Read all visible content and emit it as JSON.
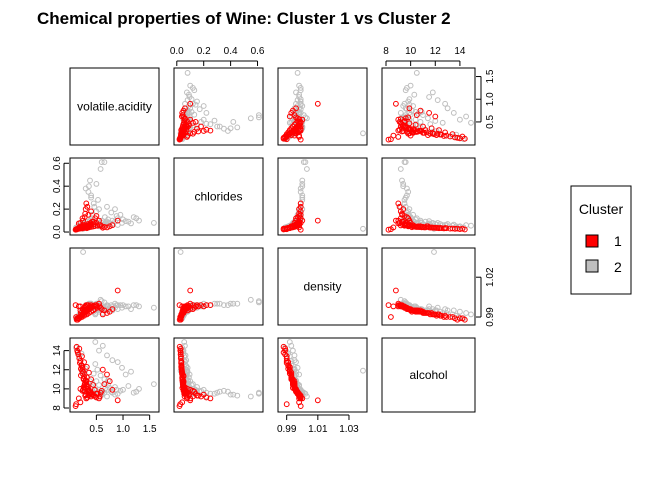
{
  "chart_data": {
    "type": "scatter",
    "title": "Chemical properties of Wine: Cluster 1 vs Cluster 2",
    "variables": [
      {
        "name": "volatile.acidity",
        "range": [
          0.08,
          1.6
        ],
        "ticks": [
          0.5,
          1.0,
          1.5
        ],
        "tick_labels": [
          "0.5",
          "1.0",
          "1.5"
        ]
      },
      {
        "name": "chlorides",
        "range": [
          0.009,
          0.611
        ],
        "ticks": [
          0.0,
          0.2,
          0.4,
          0.6
        ],
        "tick_labels": [
          "0.0",
          "0.2",
          "0.4",
          "0.6"
        ]
      },
      {
        "name": "density",
        "range": [
          0.987,
          1.039
        ],
        "ticks": [
          0.99,
          1.01,
          1.03
        ],
        "tick_labels": [
          "0.99",
          "1.01",
          "1.03"
        ],
        "right_ticks": [
          0.99,
          1.02
        ],
        "right_tick_labels": [
          "0.99",
          "1.02"
        ]
      },
      {
        "name": "alcohol",
        "range": [
          8.0,
          14.9
        ],
        "ticks": [
          8,
          10,
          12,
          14
        ],
        "tick_labels": [
          "8",
          "10",
          "12",
          "14"
        ]
      }
    ],
    "legend": {
      "title": "Cluster",
      "position": "right",
      "entries": [
        {
          "label": "1",
          "color": "#ff0000"
        },
        {
          "label": "2",
          "color": "#bebebe"
        }
      ]
    },
    "series": [
      {
        "name": "1",
        "color": "#ff0000",
        "points": [
          [
            0.28,
            0.045,
            0.994,
            10.5
          ],
          [
            0.3,
            0.05,
            0.995,
            10.8
          ],
          [
            0.32,
            0.04,
            0.993,
            11.2
          ],
          [
            0.25,
            0.038,
            0.992,
            11.8
          ],
          [
            0.35,
            0.055,
            0.996,
            9.8
          ],
          [
            0.22,
            0.036,
            0.991,
            12.4
          ],
          [
            0.27,
            0.042,
            0.994,
            10.1
          ],
          [
            0.4,
            0.06,
            0.997,
            9.5
          ],
          [
            0.31,
            0.047,
            0.995,
            10.3
          ],
          [
            0.2,
            0.033,
            0.99,
            12.9
          ],
          [
            0.26,
            0.044,
            0.993,
            11.0
          ],
          [
            0.36,
            0.052,
            0.996,
            9.9
          ],
          [
            0.24,
            0.039,
            0.992,
            11.6
          ],
          [
            0.29,
            0.05,
            0.995,
            10.6
          ],
          [
            0.45,
            0.07,
            0.998,
            9.3
          ],
          [
            0.18,
            0.03,
            0.99,
            13.2
          ],
          [
            0.33,
            0.058,
            0.996,
            10.0
          ],
          [
            0.21,
            0.035,
            0.991,
            12.1
          ],
          [
            0.38,
            0.065,
            0.997,
            9.6
          ],
          [
            0.3,
            0.041,
            0.994,
            10.9
          ],
          [
            0.5,
            0.08,
            0.999,
            9.1
          ],
          [
            0.16,
            0.028,
            0.989,
            13.6
          ],
          [
            0.28,
            0.046,
            0.994,
            10.4
          ],
          [
            0.34,
            0.049,
            0.995,
            10.2
          ],
          [
            0.23,
            0.037,
            0.992,
            11.9
          ],
          [
            0.42,
            0.09,
            0.998,
            9.4
          ],
          [
            0.27,
            0.05,
            0.993,
            11.3
          ],
          [
            0.31,
            0.043,
            0.994,
            10.7
          ],
          [
            0.19,
            0.032,
            0.99,
            12.7
          ],
          [
            0.37,
            0.061,
            0.996,
            9.7
          ],
          [
            0.55,
            0.1,
            1.0,
            9.0
          ],
          [
            0.26,
            0.04,
            0.993,
            11.1
          ],
          [
            0.14,
            0.026,
            0.989,
            14.0
          ],
          [
            0.3,
            0.054,
            0.995,
            10.1
          ],
          [
            0.24,
            0.036,
            0.992,
            12.2
          ],
          [
            0.41,
            0.072,
            0.997,
            9.5
          ],
          [
            0.29,
            0.045,
            0.994,
            10.6
          ],
          [
            0.33,
            0.05,
            0.995,
            10.3
          ],
          [
            0.22,
            0.034,
            0.991,
            12.5
          ],
          [
            0.48,
            0.12,
            0.999,
            9.2
          ],
          [
            0.12,
            0.025,
            0.99,
            8.4
          ],
          [
            0.2,
            0.04,
            0.998,
            8.6
          ],
          [
            0.6,
            0.05,
            0.996,
            9.8
          ],
          [
            0.65,
            0.045,
            0.995,
            10.5
          ],
          [
            0.7,
            0.04,
            0.993,
            11.5
          ],
          [
            0.58,
            0.06,
            0.997,
            9.6
          ],
          [
            0.62,
            0.038,
            0.992,
            12.0
          ],
          [
            0.75,
            0.05,
            0.994,
            10.8
          ],
          [
            0.35,
            0.15,
            0.999,
            9.3
          ],
          [
            0.3,
            0.2,
            0.998,
            9.4
          ],
          [
            0.4,
            0.18,
            0.999,
            9.2
          ],
          [
            0.28,
            0.13,
            0.997,
            9.7
          ],
          [
            0.25,
            0.1,
            0.996,
            9.9
          ],
          [
            0.5,
            0.14,
            0.998,
            9.5
          ],
          [
            0.15,
            0.03,
            0.988,
            13.8
          ],
          [
            0.18,
            0.029,
            0.989,
            14.2
          ],
          [
            0.23,
            0.031,
            0.99,
            13.4
          ],
          [
            0.27,
            0.035,
            0.991,
            12.8
          ],
          [
            0.32,
            0.033,
            0.992,
            12.3
          ],
          [
            0.36,
            0.04,
            0.993,
            11.7
          ],
          [
            0.4,
            0.045,
            0.994,
            11.0
          ],
          [
            0.44,
            0.048,
            0.995,
            10.4
          ],
          [
            0.47,
            0.052,
            0.996,
            9.9
          ],
          [
            0.52,
            0.055,
            0.997,
            9.5
          ],
          [
            0.56,
            0.058,
            0.998,
            9.2
          ],
          [
            0.13,
            0.022,
            0.988,
            14.4
          ],
          [
            0.21,
            0.05,
            0.993,
            11.4
          ],
          [
            0.26,
            0.06,
            0.995,
            10.2
          ],
          [
            0.34,
            0.07,
            0.996,
            9.8
          ],
          [
            0.39,
            0.08,
            0.997,
            9.6
          ],
          [
            0.45,
            0.09,
            0.998,
            9.3
          ],
          [
            0.9,
            0.1,
            1.01,
            8.8
          ],
          [
            0.11,
            0.02,
            0.999,
            8.2
          ],
          [
            0.17,
            0.075,
            0.998,
            9.0
          ],
          [
            0.8,
            0.06,
            0.996,
            9.9
          ],
          [
            0.29,
            0.16,
            0.998,
            9.3
          ],
          [
            0.33,
            0.22,
            0.999,
            9.1
          ],
          [
            0.24,
            0.12,
            0.996,
            9.8
          ],
          [
            0.31,
            0.25,
            0.999,
            9.0
          ],
          [
            0.2,
            0.08,
            0.995,
            10.0
          ]
        ]
      },
      {
        "name": "2",
        "color": "#bebebe",
        "points": [
          [
            0.6,
            0.08,
            0.997,
            9.8
          ],
          [
            0.7,
            0.09,
            0.998,
            9.9
          ],
          [
            0.55,
            0.075,
            0.996,
            10.4
          ],
          [
            0.8,
            0.1,
            0.998,
            9.6
          ],
          [
            0.65,
            0.07,
            0.995,
            11.0
          ],
          [
            0.5,
            0.085,
            0.996,
            10.8
          ],
          [
            0.9,
            0.12,
            0.999,
            9.5
          ],
          [
            0.45,
            0.065,
            0.994,
            11.6
          ],
          [
            0.75,
            0.08,
            0.997,
            10.1
          ],
          [
            0.62,
            0.095,
            0.998,
            9.7
          ],
          [
            0.58,
            0.07,
            0.995,
            11.4
          ],
          [
            1.0,
            0.11,
            0.999,
            9.9
          ],
          [
            0.68,
            0.078,
            0.996,
            10.6
          ],
          [
            0.52,
            0.072,
            0.995,
            12.0
          ],
          [
            0.85,
            0.09,
            0.997,
            10.2
          ],
          [
            0.48,
            0.06,
            0.993,
            12.6
          ],
          [
            0.72,
            0.082,
            0.996,
            10.9
          ],
          [
            0.6,
            0.1,
            0.998,
            9.4
          ],
          [
            1.1,
            0.09,
            0.998,
            10.3
          ],
          [
            0.4,
            0.3,
            1.0,
            9.6
          ],
          [
            0.35,
            0.35,
            0.999,
            9.8
          ],
          [
            0.45,
            0.25,
            0.999,
            9.5
          ],
          [
            0.5,
            0.42,
            1.0,
            9.4
          ],
          [
            0.38,
            0.45,
            1.0,
            9.3
          ],
          [
            0.55,
            0.2,
            0.998,
            9.9
          ],
          [
            0.42,
            0.15,
            0.997,
            10.2
          ],
          [
            0.3,
            0.38,
            0.999,
            9.7
          ],
          [
            0.6,
            0.61,
            1.002,
            9.5
          ],
          [
            0.65,
            0.61,
            1.001,
            9.6
          ],
          [
            0.7,
            0.22,
            0.999,
            9.2
          ],
          [
            1.2,
            0.13,
            0.999,
            9.6
          ],
          [
            0.95,
            0.15,
            0.999,
            9.8
          ],
          [
            0.78,
            0.17,
            0.999,
            9.7
          ],
          [
            0.85,
            0.2,
            1.0,
            9.4
          ],
          [
            1.3,
            0.1,
            0.998,
            10.0
          ],
          [
            1.58,
            0.08,
            0.997,
            10.5
          ],
          [
            0.58,
            0.55,
            1.003,
            9.2
          ],
          [
            0.25,
            0.028,
            1.039,
            11.9
          ],
          [
            0.9,
            0.061,
            0.996,
            12.8
          ],
          [
            0.7,
            0.065,
            0.995,
            13.5
          ],
          [
            0.55,
            0.05,
            0.994,
            14.0
          ],
          [
            0.8,
            0.07,
            0.995,
            13.0
          ],
          [
            0.62,
            0.06,
            0.993,
            14.5
          ],
          [
            0.48,
            0.055,
            0.992,
            14.9
          ],
          [
            1.05,
            0.095,
            0.998,
            11.5
          ],
          [
            0.98,
            0.08,
            0.997,
            12.2
          ],
          [
            1.15,
            0.075,
            0.996,
            11.8
          ],
          [
            0.42,
            0.12,
            0.997,
            10.5
          ],
          [
            0.38,
            0.1,
            0.996,
            10.8
          ],
          [
            0.33,
            0.09,
            0.995,
            11.2
          ],
          [
            0.28,
            0.08,
            0.994,
            11.8
          ],
          [
            0.66,
            0.13,
            0.998,
            10.0
          ],
          [
            0.88,
            0.14,
            0.999,
            9.9
          ],
          [
            1.25,
            0.12,
            0.999,
            9.7
          ],
          [
            0.72,
            0.11,
            0.998,
            10.4
          ],
          [
            0.5,
            0.18,
            0.998,
            9.8
          ],
          [
            0.46,
            0.22,
            0.999,
            9.6
          ],
          [
            0.53,
            0.28,
            1.0,
            9.5
          ],
          [
            0.4,
            0.32,
            1.0,
            9.7
          ],
          [
            0.36,
            0.4,
            1.0,
            9.4
          ],
          [
            0.2,
            0.06,
            0.993,
            12.9
          ],
          [
            0.18,
            0.055,
            0.992,
            13.4
          ],
          [
            0.24,
            0.07,
            0.994,
            12.4
          ],
          [
            0.15,
            0.045,
            0.99,
            13.9
          ],
          [
            0.3,
            0.065,
            0.995,
            12.1
          ],
          [
            0.26,
            0.075,
            0.996,
            11.5
          ],
          [
            0.12,
            0.04,
            0.989,
            14.3
          ],
          [
            0.22,
            0.05,
            0.991,
            13.7
          ]
        ]
      }
    ]
  }
}
